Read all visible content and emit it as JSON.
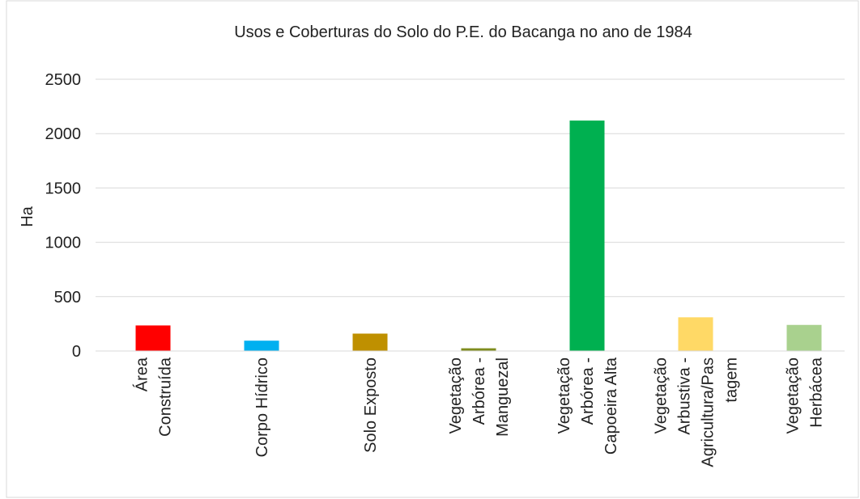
{
  "chart_data": {
    "type": "bar",
    "title": "Usos e Coberturas do Solo do P.E. do Bacanga no ano de 1984",
    "y_label": "Ha",
    "categories": [
      "Área Construída",
      "Corpo Hídrico",
      "Solo Exposto",
      "Vegetação Arbórea - Manguezal",
      "Vegetação Arbórea - Capoeira Alta",
      "Vegetação Arbustiva - Agricultura/Pastagem",
      "Vegetação Herbácea"
    ],
    "values": [
      235,
      95,
      160,
      25,
      2120,
      310,
      240
    ],
    "colors": [
      "#ff0000",
      "#00b0f0",
      "#bf9000",
      "#7f8c1e",
      "#00b050",
      "#ffd966",
      "#a9d18e"
    ],
    "ylim": [
      0,
      2500
    ],
    "yticks": [
      0,
      500,
      1000,
      1500,
      2000,
      2500
    ],
    "grid": true
  }
}
